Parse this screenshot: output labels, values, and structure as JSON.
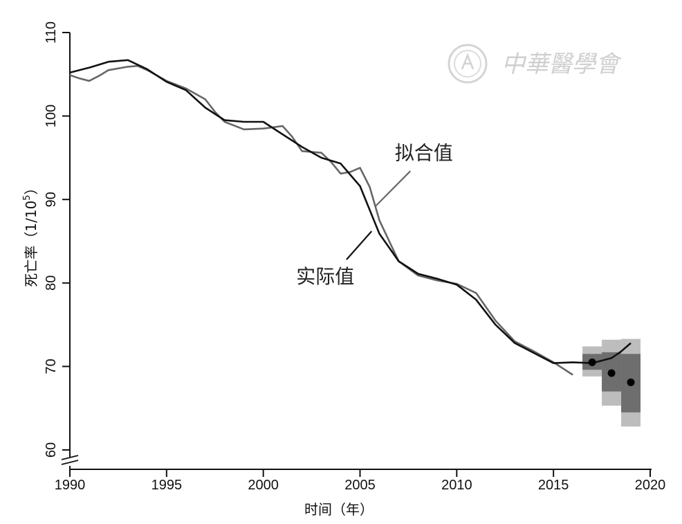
{
  "chart_data": {
    "type": "line",
    "xlabel": "时间（年）",
    "ylabel": "死亡率（1/10",
    "ylabel_sup": "5",
    "ylabel_close": "）",
    "xlim": [
      1990,
      2020
    ],
    "ylim": [
      60,
      110
    ],
    "x_ticks": [
      1990,
      1995,
      2000,
      2005,
      2010,
      2015,
      2020
    ],
    "y_ticks": [
      60,
      70,
      80,
      90,
      100,
      110
    ],
    "y_axis_break": true,
    "watermark": "中華醫學會",
    "colors": {
      "fitted": "#666666",
      "actual": "#111111",
      "band_outer": "#bdbdbd",
      "band_inner": "#6e6e6e",
      "forecast_point": "#000000"
    },
    "series": [
      {
        "name": "拟合值",
        "color": "#666666",
        "points": [
          [
            1990,
            104.9
          ],
          [
            1990.5,
            104.5
          ],
          [
            1991,
            104.2
          ],
          [
            1991.5,
            104.8
          ],
          [
            1992,
            105.5
          ],
          [
            1993,
            105.9
          ],
          [
            1993.5,
            106.0
          ],
          [
            1994,
            105.5
          ],
          [
            1995,
            104.2
          ],
          [
            1996,
            103.3
          ],
          [
            1997,
            102.0
          ],
          [
            1997.5,
            100.5
          ],
          [
            1998,
            99.3
          ],
          [
            1999,
            98.4
          ],
          [
            2000,
            98.5
          ],
          [
            2001,
            98.8
          ],
          [
            2001.5,
            97.5
          ],
          [
            2002,
            95.8
          ],
          [
            2003,
            95.6
          ],
          [
            2003.5,
            94.5
          ],
          [
            2004,
            93.1
          ],
          [
            2004.5,
            93.3
          ],
          [
            2005,
            93.8
          ],
          [
            2005.5,
            91.5
          ],
          [
            2006,
            87.5
          ],
          [
            2007,
            82.6
          ],
          [
            2008,
            80.9
          ],
          [
            2009,
            80.3
          ],
          [
            2010,
            79.9
          ],
          [
            2011,
            78.8
          ],
          [
            2012,
            75.5
          ],
          [
            2013,
            73.0
          ],
          [
            2014,
            71.8
          ],
          [
            2015,
            70.5
          ],
          [
            2016,
            69.0
          ]
        ]
      },
      {
        "name": "实际值",
        "color": "#111111",
        "points": [
          [
            1990,
            105.2
          ],
          [
            1991,
            105.8
          ],
          [
            1992,
            106.5
          ],
          [
            1993,
            106.7
          ],
          [
            1994,
            105.6
          ],
          [
            1995,
            104.1
          ],
          [
            1996,
            103.1
          ],
          [
            1997,
            101.0
          ],
          [
            1998,
            99.5
          ],
          [
            1999,
            99.3
          ],
          [
            2000,
            99.3
          ],
          [
            2001,
            97.8
          ],
          [
            2002,
            96.3
          ],
          [
            2003,
            95.0
          ],
          [
            2004,
            94.3
          ],
          [
            2005,
            91.6
          ],
          [
            2006,
            85.9
          ],
          [
            2007,
            82.6
          ],
          [
            2008,
            81.1
          ],
          [
            2009,
            80.5
          ],
          [
            2010,
            79.8
          ],
          [
            2011,
            78.0
          ],
          [
            2012,
            75.0
          ],
          [
            2013,
            72.8
          ],
          [
            2014,
            71.6
          ],
          [
            2015,
            70.4
          ],
          [
            2016,
            70.5
          ],
          [
            2017,
            70.4
          ],
          [
            2018,
            71.0
          ],
          [
            2018.5,
            71.8
          ],
          [
            2019,
            72.8
          ]
        ]
      }
    ],
    "forecast": [
      {
        "x": 2017,
        "value": 70.5,
        "inner": [
          69.6,
          71.5
        ],
        "outer": [
          68.8,
          72.4
        ]
      },
      {
        "x": 2018,
        "value": 69.2,
        "inner": [
          67.0,
          71.7
        ],
        "outer": [
          65.3,
          73.2
        ]
      },
      {
        "x": 2019,
        "value": 68.1,
        "inner": [
          64.5,
          71.5
        ],
        "outer": [
          62.8,
          73.3
        ]
      }
    ],
    "annotations": [
      {
        "text": "拟合值",
        "x": 2006.8,
        "y": 94.8
      },
      {
        "text": "实际值",
        "x": 2001.7,
        "y": 80.0
      }
    ]
  }
}
